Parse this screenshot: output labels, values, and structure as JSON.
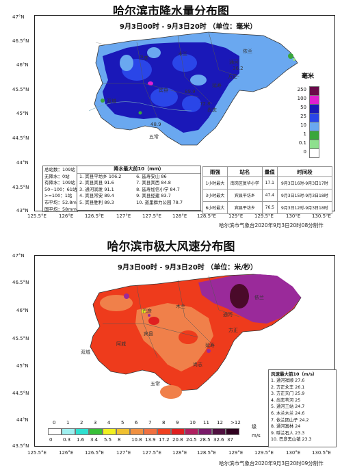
{
  "map1": {
    "title": "哈尔滨市降水量分布图",
    "subtitle": "9月3日00时 - 9月3日20时 （单位：毫米）",
    "lat_ticks": [
      "47°N",
      "46.5°N",
      "46°N",
      "45.5°N",
      "45°N",
      "44.5°N",
      "44°N",
      "43.5°N",
      "43°N"
    ],
    "lon_ticks": [
      "125.5°E",
      "126°E",
      "126.5°E",
      "127°E",
      "127.5°E",
      "128°E",
      "128.5°E",
      "129°E",
      "129.5°E",
      "130°E",
      "130.5°E"
    ],
    "credit": "哈尔滨市气象台2020年9月3日20时08分制作",
    "legend": {
      "unit": "毫米",
      "levels": [
        {
          "label": "250",
          "color": "#6a0a4a"
        },
        {
          "label": "100",
          "color": "#e020d0"
        },
        {
          "label": "50",
          "color": "#1a18b8"
        },
        {
          "label": "25",
          "color": "#2a46e8"
        },
        {
          "label": "10",
          "color": "#6aa8f0"
        },
        {
          "label": "1",
          "color": "#3aa63a"
        },
        {
          "label": "0.1",
          "color": "#8ee08e"
        },
        {
          "label": "0",
          "color": "#ffffff"
        }
      ]
    },
    "stats": [
      "总站数：109站",
      "无降水：0站",
      "有降水：109站",
      "50~100：61站",
      ">=100：1站",
      "市平均：52.8mm",
      "国平均：58mm"
    ],
    "top10_title": "降水最大前10（mm）",
    "top10_left": [
      "1. 宾县平坊乡 106.2",
      "2. 宾县宾县 91.6",
      "3. 通河润发 91.1",
      "4. 宾县常安 89.4",
      "5. 宾县胜利 89.3"
    ],
    "top10_right": [
      "6. 延寿安山 86",
      "7. 宾县宾西 84.8",
      "8. 延寿加信小学 84.7",
      "9. 宾县经建 83.7",
      "10. 道里群力公园 78.7"
    ],
    "intensity_table": {
      "headers": [
        "雨强",
        "站名",
        "量值",
        "时间段"
      ],
      "rows": [
        [
          "1小时最大",
          "南岗区复华小学",
          "17.1",
          "9月3日16时-9月3日17时"
        ],
        [
          "3小时最大",
          "宾县平坊乡",
          "47.4",
          "9月3日15时-9月3日18时"
        ],
        [
          "6小时最大",
          "宾县平坊乡",
          "76.5",
          "9月3日12时-9月3日18时"
        ]
      ]
    },
    "place_labels": [
      "通河",
      "方正",
      "五常",
      "尚志",
      "双城",
      "巴彦",
      "木兰",
      "宾县",
      "延寿",
      "依兰"
    ],
    "value_labels": [
      "48.9",
      "89.9",
      "36.2",
      "72.8"
    ]
  },
  "map2": {
    "title": "哈尔滨市极大风速分布图",
    "subtitle": "9月3日00时 - 9月3日20时 （单位：米/秒）",
    "lat_ticks": [
      "47°N",
      "46.5°N",
      "46°N",
      "45.5°N",
      "45°N",
      "44.5°N",
      "44°N",
      "43.5°N"
    ],
    "lon_ticks": [
      "125.5°E",
      "126°E",
      "126.5°E",
      "127°E",
      "127.5°E",
      "128°E",
      "128.5°E",
      "129°E",
      "129.5°E",
      "130°E",
      "130.5°E"
    ],
    "credit": "哈尔滨市气象台2020年9月3日20时09分制作",
    "legend": {
      "levels": [
        "0",
        "1",
        "2",
        "3",
        "4",
        "5",
        "6",
        "7",
        "8",
        "9",
        "10",
        "11",
        "12",
        ">12"
      ],
      "level_word": "级",
      "bounds": [
        "0",
        "0.3",
        "1.6",
        "3.4",
        "5.5",
        "8",
        "10.8",
        "13.9",
        "17.2",
        "20.8",
        "24.5",
        "28.5",
        "32.6",
        "37"
      ],
      "unit": "m/s",
      "colors": [
        "#ffffff",
        "#9ff0f0",
        "#2fe0d0",
        "#38c038",
        "#f0f020",
        "#f0c030",
        "#f09040",
        "#f07040",
        "#f04020",
        "#e02020",
        "#b02060",
        "#7a1a6a",
        "#501040",
        "#300020"
      ]
    },
    "top10_title": "风速最大前10（m/s）",
    "top10": [
      "1. 通河祥顺 27.6",
      "2. 方正永丰 26.1",
      "3. 方正天门 25.9",
      "4. 尚志苇河 25",
      "5. 通河三站 24.7",
      "6. 木兰木兰 24.6",
      "7. 依兰团山子 24.2",
      "8. 通河富林 24",
      "9. 呼兰石人 23.3",
      "10. 巴彦黑山镇 23.3"
    ],
    "place_labels": [
      "通河",
      "方正",
      "木兰",
      "巴彦",
      "宾县",
      "五常",
      "双城",
      "阿城",
      "延寿",
      "尚志",
      "依兰"
    ]
  },
  "colors": {
    "deep_blue": "#1a18b8",
    "mid_blue": "#2a46e8",
    "light_blue": "#6aa8f0",
    "red": "#ee3b1c",
    "orange": "#f0804a",
    "purple": "#9a2a9a",
    "dark_purple": "#4a0a2a"
  }
}
